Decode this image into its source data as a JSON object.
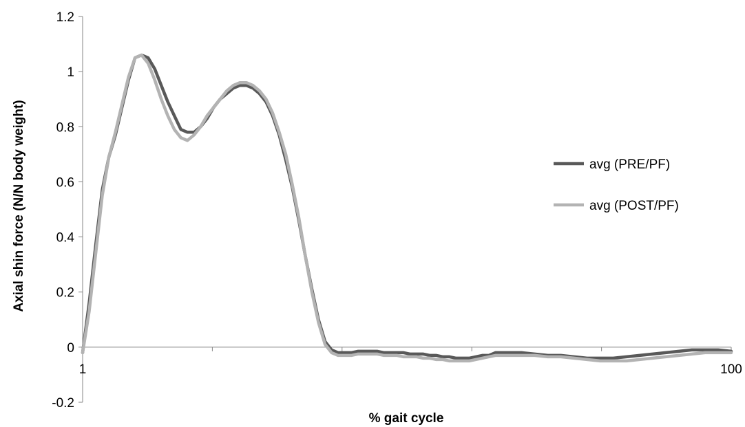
{
  "chart_data": {
    "type": "line",
    "title": "",
    "xlabel": "% gait cycle",
    "ylabel": "Axial shin force (N/N body weight)",
    "xlim": [
      1,
      100
    ],
    "ylim": [
      -0.2,
      1.2
    ],
    "x_tick_labels": [
      {
        "value": 1,
        "label": "1"
      },
      {
        "value": 100,
        "label": "100"
      }
    ],
    "y_ticks": [
      {
        "value": 1.2,
        "label": "1.2"
      },
      {
        "value": 1.0,
        "label": "1"
      },
      {
        "value": 0.8,
        "label": "0.8"
      },
      {
        "value": 0.6,
        "label": "0.6"
      },
      {
        "value": 0.4,
        "label": "0.4"
      },
      {
        "value": 0.2,
        "label": "0.2"
      },
      {
        "value": 0.0,
        "label": "0"
      },
      {
        "value": -0.2,
        "label": "-0.2"
      }
    ],
    "grid": false,
    "legend_position": "right",
    "series": [
      {
        "name": "avg (PRE/PF)",
        "color": "#595959",
        "x": [
          1,
          2,
          3,
          4,
          5,
          6,
          7,
          8,
          9,
          10,
          11,
          12,
          13,
          14,
          15,
          16,
          17,
          18,
          19,
          20,
          21,
          22,
          23,
          24,
          25,
          26,
          27,
          28,
          29,
          30,
          31,
          32,
          33,
          34,
          35,
          36,
          37,
          38,
          39,
          40,
          41,
          42,
          43,
          44,
          45,
          46,
          47,
          48,
          49,
          50,
          51,
          52,
          53,
          54,
          55,
          56,
          57,
          58,
          59,
          60,
          61,
          62,
          63,
          64,
          66,
          68,
          70,
          72,
          74,
          76,
          78,
          80,
          82,
          84,
          86,
          88,
          90,
          92,
          94,
          96,
          98,
          100
        ],
        "y": [
          -0.02,
          0.16,
          0.37,
          0.57,
          0.69,
          0.77,
          0.87,
          0.97,
          1.05,
          1.06,
          1.05,
          1.01,
          0.95,
          0.89,
          0.84,
          0.79,
          0.78,
          0.78,
          0.8,
          0.83,
          0.87,
          0.9,
          0.92,
          0.94,
          0.95,
          0.95,
          0.94,
          0.92,
          0.89,
          0.84,
          0.77,
          0.68,
          0.58,
          0.46,
          0.33,
          0.21,
          0.1,
          0.02,
          -0.01,
          -0.02,
          -0.02,
          -0.02,
          -0.015,
          -0.015,
          -0.015,
          -0.015,
          -0.02,
          -0.02,
          -0.02,
          -0.02,
          -0.025,
          -0.025,
          -0.025,
          -0.03,
          -0.03,
          -0.035,
          -0.035,
          -0.04,
          -0.04,
          -0.04,
          -0.035,
          -0.03,
          -0.03,
          -0.02,
          -0.02,
          -0.02,
          -0.025,
          -0.03,
          -0.03,
          -0.035,
          -0.04,
          -0.04,
          -0.04,
          -0.035,
          -0.03,
          -0.025,
          -0.02,
          -0.015,
          -0.01,
          -0.01,
          -0.01,
          -0.015
        ]
      },
      {
        "name": "avg (POST/PF)",
        "color": "#b3b3b3",
        "x": [
          1,
          2,
          3,
          4,
          5,
          6,
          7,
          8,
          9,
          10,
          11,
          12,
          13,
          14,
          15,
          16,
          17,
          18,
          19,
          20,
          21,
          22,
          23,
          24,
          25,
          26,
          27,
          28,
          29,
          30,
          31,
          32,
          33,
          34,
          35,
          36,
          37,
          38,
          39,
          40,
          41,
          42,
          43,
          44,
          45,
          46,
          47,
          48,
          49,
          50,
          51,
          52,
          53,
          54,
          55,
          56,
          57,
          58,
          59,
          60,
          61,
          62,
          63,
          64,
          66,
          68,
          70,
          72,
          74,
          76,
          78,
          80,
          82,
          84,
          86,
          88,
          90,
          92,
          94,
          96,
          98,
          100
        ],
        "y": [
          -0.02,
          0.13,
          0.34,
          0.55,
          0.69,
          0.78,
          0.88,
          0.98,
          1.05,
          1.06,
          1.03,
          0.97,
          0.9,
          0.84,
          0.79,
          0.76,
          0.75,
          0.77,
          0.8,
          0.84,
          0.87,
          0.9,
          0.93,
          0.95,
          0.96,
          0.96,
          0.95,
          0.93,
          0.9,
          0.85,
          0.78,
          0.7,
          0.59,
          0.47,
          0.33,
          0.2,
          0.09,
          0.01,
          -0.02,
          -0.03,
          -0.03,
          -0.03,
          -0.025,
          -0.025,
          -0.025,
          -0.025,
          -0.03,
          -0.03,
          -0.03,
          -0.035,
          -0.035,
          -0.035,
          -0.04,
          -0.04,
          -0.045,
          -0.045,
          -0.05,
          -0.05,
          -0.05,
          -0.05,
          -0.045,
          -0.04,
          -0.035,
          -0.03,
          -0.03,
          -0.03,
          -0.03,
          -0.035,
          -0.035,
          -0.04,
          -0.045,
          -0.05,
          -0.05,
          -0.05,
          -0.045,
          -0.04,
          -0.035,
          -0.03,
          -0.025,
          -0.02,
          -0.02,
          -0.02
        ]
      }
    ]
  }
}
